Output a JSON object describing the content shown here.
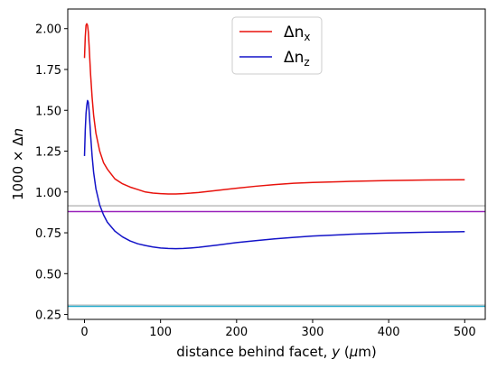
{
  "chart_data": {
    "type": "line",
    "xlabel_parts": [
      "distance behind facet, ",
      "y",
      " (",
      "μ",
      "m)"
    ],
    "ylabel_parts": [
      "1000 × Δ",
      "n"
    ],
    "xlim": [
      -22,
      527
    ],
    "ylim": [
      0.22,
      2.12
    ],
    "xticks": [
      0,
      100,
      200,
      300,
      400,
      500
    ],
    "yticks": [
      0.25,
      0.5,
      0.75,
      1.0,
      1.25,
      1.5,
      1.75,
      2.0
    ],
    "ytick_labels": [
      "0.25",
      "0.50",
      "0.75",
      "1.00",
      "1.25",
      "1.50",
      "1.75",
      "2.00"
    ],
    "legend_position": "top-center",
    "series": [
      {
        "name": "Δn_x",
        "label_main": "Δn",
        "label_sub": "x",
        "color": "#e8120c",
        "x": [
          0,
          1,
          2,
          3,
          4,
          5,
          6,
          8,
          10,
          12,
          15,
          20,
          25,
          30,
          40,
          50,
          60,
          70,
          80,
          90,
          100,
          110,
          120,
          130,
          140,
          150,
          175,
          200,
          225,
          250,
          275,
          300,
          350,
          400,
          450,
          500
        ],
        "y": [
          1.82,
          1.95,
          2.02,
          2.03,
          2.02,
          1.98,
          1.9,
          1.72,
          1.58,
          1.47,
          1.36,
          1.25,
          1.18,
          1.14,
          1.08,
          1.05,
          1.03,
          1.015,
          1.0,
          0.993,
          0.99,
          0.988,
          0.988,
          0.99,
          0.993,
          0.997,
          1.01,
          1.023,
          1.035,
          1.045,
          1.053,
          1.058,
          1.065,
          1.07,
          1.073,
          1.075
        ]
      },
      {
        "name": "Δn_z",
        "label_main": "Δn",
        "label_sub": "z",
        "color": "#1313c8",
        "x": [
          0,
          1,
          2,
          3,
          4,
          5,
          6,
          8,
          10,
          12,
          15,
          20,
          25,
          30,
          40,
          50,
          60,
          70,
          80,
          90,
          100,
          110,
          120,
          130,
          140,
          150,
          175,
          200,
          225,
          250,
          275,
          300,
          350,
          400,
          450,
          500
        ],
        "y": [
          1.22,
          1.38,
          1.48,
          1.53,
          1.56,
          1.55,
          1.5,
          1.35,
          1.22,
          1.12,
          1.02,
          0.92,
          0.86,
          0.815,
          0.76,
          0.725,
          0.7,
          0.683,
          0.672,
          0.663,
          0.657,
          0.654,
          0.653,
          0.654,
          0.657,
          0.661,
          0.675,
          0.69,
          0.702,
          0.713,
          0.722,
          0.73,
          0.741,
          0.749,
          0.754,
          0.757
        ]
      }
    ],
    "hlines": [
      {
        "y": 0.915,
        "color": "#bbbbbb"
      },
      {
        "y": 0.88,
        "color": "#9922bb"
      },
      {
        "y": 0.308,
        "color": "#c8c8c8"
      },
      {
        "y": 0.3,
        "color": "#22aacc"
      }
    ]
  }
}
